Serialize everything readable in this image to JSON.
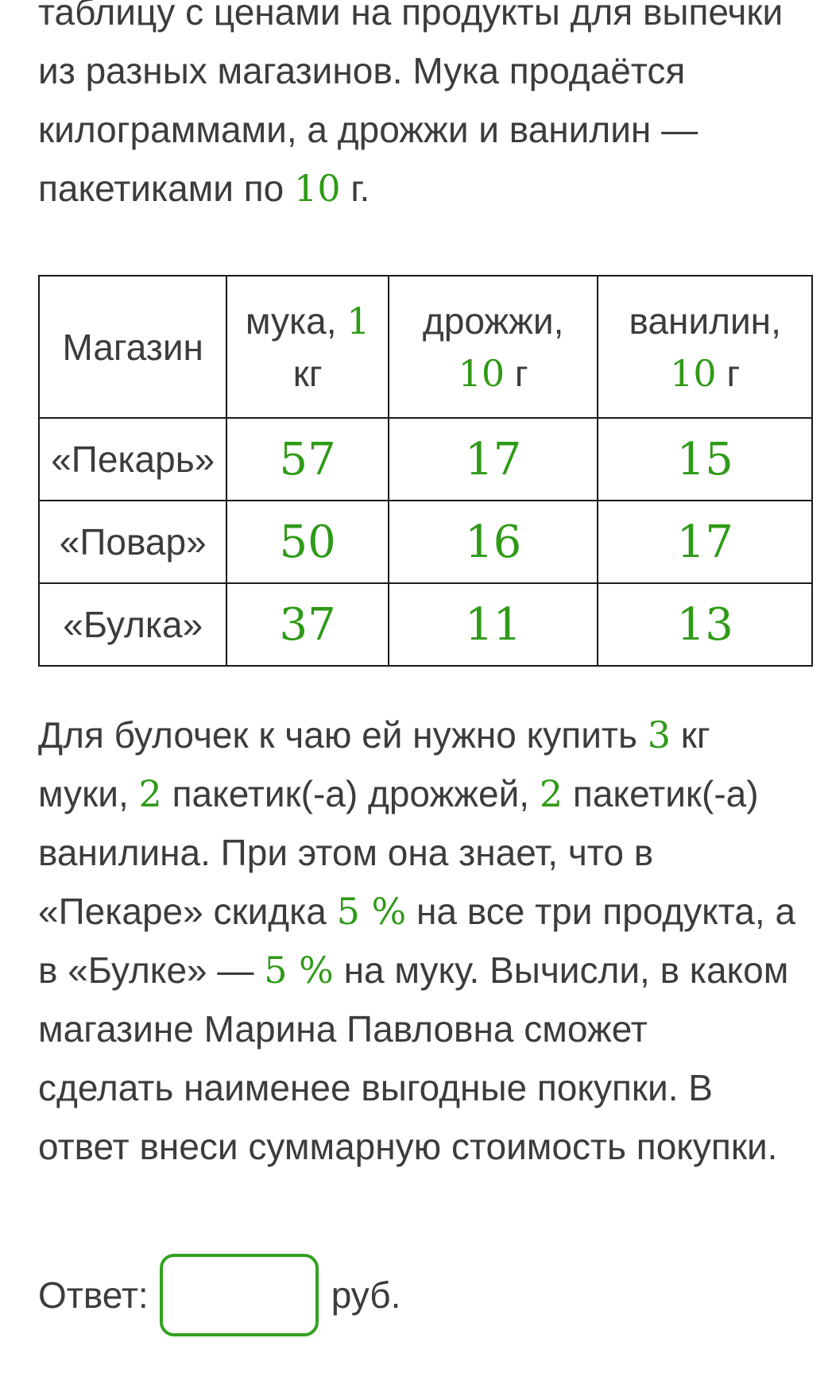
{
  "intro": {
    "line1": "таблицу с ценами на продукты для выпечки",
    "line2": "из разных магазинов. Мука продаётся",
    "line3": "килограммами, а дрожжи и ванилин —",
    "line4_text": "пакетиками по ",
    "line4_num": "10",
    "line4_unit": " г."
  },
  "table": {
    "headers": {
      "shop": "Магазин",
      "flour_text": "мука, ",
      "flour_num": "1",
      "flour_unit": "кг",
      "yeast_text": "дрожжи,",
      "yeast_num": "10",
      "yeast_unit": " г",
      "vanillin_text": "ванилин,",
      "vanillin_num": "10",
      "vanillin_unit": " г"
    },
    "rows": [
      {
        "shop": "«Пекарь»",
        "flour": "57",
        "yeast": "17",
        "vanillin": "15"
      },
      {
        "shop": "«Повар»",
        "flour": "50",
        "yeast": "16",
        "vanillin": "17"
      },
      {
        "shop": "«Булка»",
        "flour": "37",
        "yeast": "11",
        "vanillin": "13"
      }
    ]
  },
  "task": {
    "s1": "Для булочек к чаю ей нужно купить ",
    "n1": "3",
    "s2": " кг",
    "s3": "муки, ",
    "n2": "2",
    "s4": " пакетик(-а) дрожжей, ",
    "n3": "2",
    "s5": " пакетик(-а)",
    "s6": "ванилина. При этом она знает, что в",
    "s7": "«Пекаре» скидка ",
    "n4": "5 %",
    "s8": " на все три продукта, а",
    "s9": "в «Булке» — ",
    "n5": "5 %",
    "s10": " на муку. Вычисли, в каком",
    "s11": "магазине Марина Павловна сможет",
    "s12": "сделать наименее выгодные покупки. В",
    "s13": "ответ внеси суммарную стоимость покупки."
  },
  "answer": {
    "label": "Ответ:",
    "value": "",
    "unit": "руб."
  },
  "colors": {
    "accent_green": "#2f9a17",
    "input_border": "#33a121",
    "text": "#3c3c3c"
  }
}
